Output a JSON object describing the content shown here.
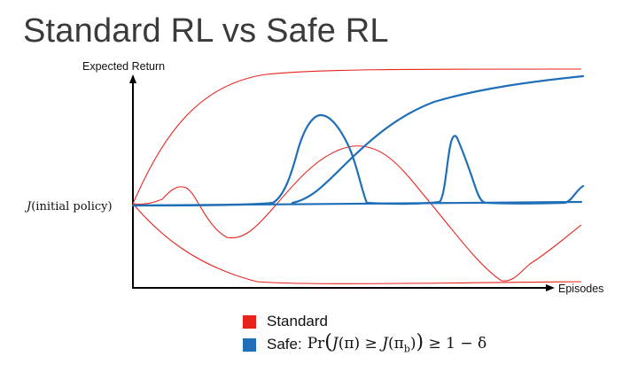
{
  "title": "Standard RL vs Safe RL",
  "axes": {
    "y_label": "Expected Return",
    "x_label": "Episodes",
    "baseline_label": "J(initial policy)",
    "baseline_symbol": "J",
    "baseline_text": "(initial policy)"
  },
  "legend": {
    "standard": {
      "label": "Standard",
      "color": "#e8231c"
    },
    "safe": {
      "label": "Safe:",
      "color": "#1f6fb8",
      "formula": "Pr(J(π) ≥ J(π_b)) ≥ 1 − δ",
      "formula_parts": {
        "pr": "Pr",
        "open_big": "(",
        "j1": "J",
        "pi_part": "(π) ≥ ",
        "j2": "J",
        "pib_open": "(π",
        "pib_sub": "b",
        "pib_close": ")",
        "close_big": ")",
        "tail": " ≥ 1 − δ"
      }
    }
  },
  "colors": {
    "standard": "#e8231c",
    "safe": "#1f6fb8",
    "axes": "#000000"
  }
}
